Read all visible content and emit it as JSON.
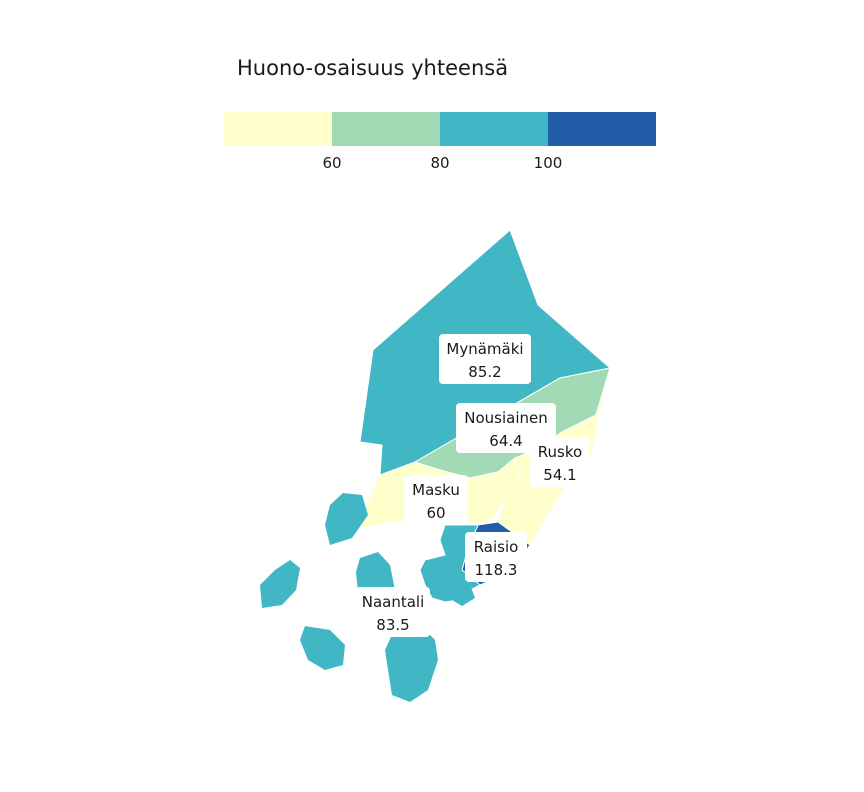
{
  "legend": {
    "title": "Huono-osaisuus yhteensä",
    "colors": [
      "#ffffcc",
      "#a1dab4",
      "#41b6c4",
      "#225ea8"
    ],
    "ticks": [
      "60",
      "80",
      "100"
    ]
  },
  "regions": [
    {
      "name": "Mynämäki",
      "value": "85.2",
      "color": "#41b6c4"
    },
    {
      "name": "Nousiainen",
      "value": "64.4",
      "color": "#a1dab4"
    },
    {
      "name": "Rusko",
      "value": "54.1",
      "color": "#ffffcc"
    },
    {
      "name": "Masku",
      "value": "60",
      "color": "#ffffcc"
    },
    {
      "name": "Raisio",
      "value": "118.3",
      "color": "#225ea8"
    },
    {
      "name": "Naantali",
      "value": "83.5",
      "color": "#41b6c4"
    }
  ]
}
